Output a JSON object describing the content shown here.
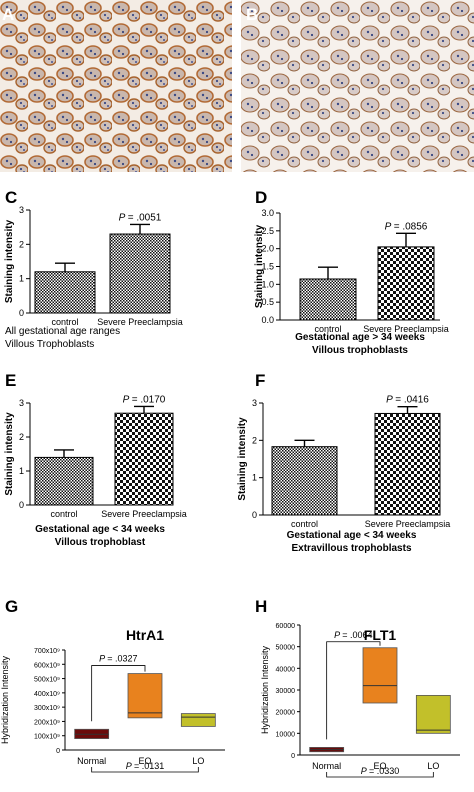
{
  "panels": {
    "A": {
      "label": "A"
    },
    "B": {
      "label": "B"
    }
  },
  "chart_data": [
    {
      "panel": "C",
      "type": "bar",
      "categories": [
        "control",
        "Severe Preeclampsia"
      ],
      "values": [
        1.2,
        2.3
      ],
      "errors": [
        0.25,
        0.28
      ],
      "ylabel": "Staining intensity",
      "ylim": [
        0,
        3
      ],
      "yticks": [
        0,
        1,
        2,
        3
      ],
      "pvalue": "= .0051",
      "caption": [
        "All gestational age ranges",
        "Villous Trophoblasts"
      ]
    },
    {
      "panel": "D",
      "type": "bar",
      "categories": [
        "control",
        "Severe Preeclampsia"
      ],
      "values": [
        1.15,
        2.05
      ],
      "errors": [
        0.33,
        0.38
      ],
      "ylabel": "Staining intensity",
      "ylim": [
        0,
        3
      ],
      "yticks": [
        0,
        0.5,
        1.0,
        1.5,
        2.0,
        2.5,
        3.0
      ],
      "ytick_labels": [
        "0.0",
        "0.5",
        "1.0",
        "1.5",
        "2.0",
        "2.5",
        "3.0"
      ],
      "pvalue": "= .0856",
      "caption": [
        "Gestational age > 34 weeks",
        "Villous trophoblasts"
      ]
    },
    {
      "panel": "E",
      "type": "bar",
      "categories": [
        "control",
        "Severe Preeclampsia"
      ],
      "values": [
        1.4,
        2.7
      ],
      "errors": [
        0.22,
        0.2
      ],
      "ylabel": "Staining intensity",
      "ylim": [
        0,
        3
      ],
      "yticks": [
        0,
        1,
        2,
        3
      ],
      "pvalue": "= .0170",
      "caption": [
        "Gestational age  < 34 weeks",
        "Villous trophoblast"
      ]
    },
    {
      "panel": "F",
      "type": "bar",
      "categories": [
        "control",
        "Severe Preeclampsia"
      ],
      "values": [
        1.83,
        2.72
      ],
      "errors": [
        0.17,
        0.18
      ],
      "ylabel": "Staining intensity",
      "ylim": [
        0,
        3
      ],
      "yticks": [
        0,
        1,
        2,
        3
      ],
      "pvalue": "= .0416",
      "caption": [
        "Gestational age  < 34 weeks",
        "Extravillous trophoblasts"
      ]
    },
    {
      "panel": "G",
      "type": "box",
      "title": "HtrA1",
      "categories": [
        "Normal",
        "EO",
        "LO"
      ],
      "boxes": [
        {
          "q1": 80,
          "median": 110,
          "q3": 145,
          "min": 80,
          "max": 145
        },
        {
          "q1": 225,
          "median": 260,
          "q3": 535,
          "min": 225,
          "max": 535
        },
        {
          "q1": 165,
          "median": 230,
          "q3": 255,
          "min": 165,
          "max": 255
        }
      ],
      "colors": [
        "#6b0b0b",
        "#e8821e",
        "#c2c02a"
      ],
      "ylabel": "Hybridization Intensity",
      "ylim": [
        0,
        700
      ],
      "ytick_labels": [
        "0",
        "100x10⁹",
        "200x10⁹",
        "300x10⁹",
        "400x10⁹",
        "500x10⁹",
        "600x10⁹",
        "700x10⁹"
      ],
      "pvalue_top": "= .0327",
      "pvalue_bottom": "= .0131"
    },
    {
      "panel": "H",
      "type": "box",
      "title": "FLT1",
      "categories": [
        "Normal",
        "EO",
        "LO"
      ],
      "boxes": [
        {
          "q1": 1500,
          "median": 2500,
          "q3": 3500,
          "min": 1500,
          "max": 3500
        },
        {
          "q1": 24000,
          "median": 32000,
          "q3": 49500,
          "min": 24000,
          "max": 49500
        },
        {
          "q1": 10000,
          "median": 11500,
          "q3": 27500,
          "min": 10000,
          "max": 27500
        }
      ],
      "colors": [
        "#6b0b0b",
        "#e8821e",
        "#c2c02a"
      ],
      "ylabel": "Hybridization Intensity",
      "ylim": [
        0,
        60000
      ],
      "yticks": [
        0,
        10000,
        20000,
        30000,
        40000,
        50000,
        60000
      ],
      "pvalue_top": "= .0064",
      "pvalue_bottom": "= .0330"
    }
  ]
}
